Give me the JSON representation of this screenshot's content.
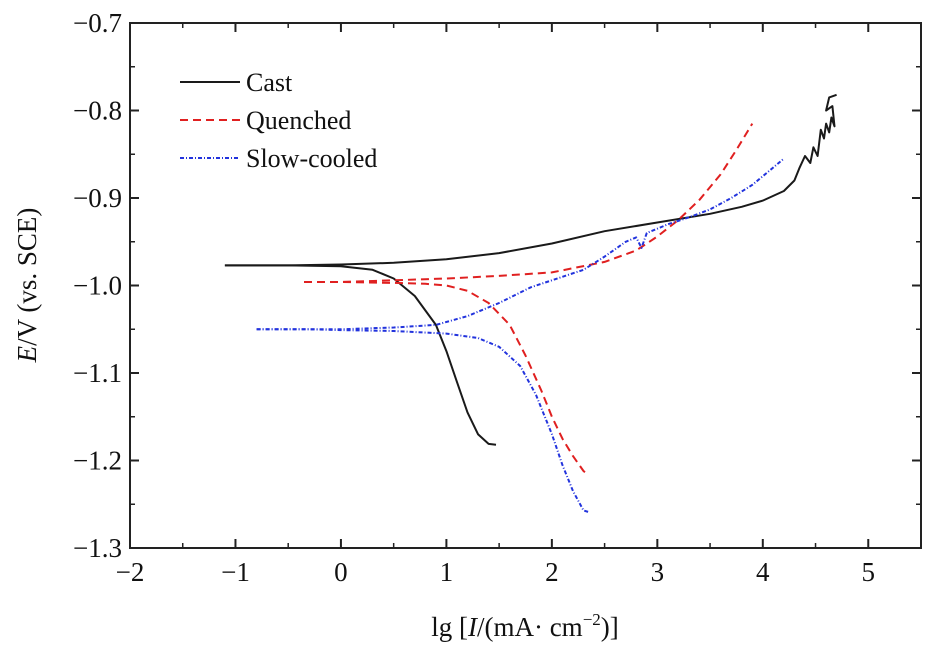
{
  "chart_data": {
    "type": "line",
    "title": "",
    "xlabel": {
      "prefix": "lg [",
      "var": "I",
      "mid": "/(mA· cm",
      "sup": "−2",
      "suffix": ")]"
    },
    "ylabel": {
      "var": "E",
      "rest": "/V (vs. SCE)"
    },
    "xlim": [
      -2,
      5.5
    ],
    "ylim": [
      -1.3,
      -0.7
    ],
    "xticks": [
      -2,
      -1,
      0,
      1,
      2,
      3,
      4,
      5
    ],
    "xtick_labels": [
      "−2",
      "−1",
      "0",
      "1",
      "2",
      "3",
      "4",
      "5"
    ],
    "yticks": [
      -1.3,
      -1.2,
      -1.1,
      -1.0,
      -0.9,
      -0.8,
      -0.7
    ],
    "ytick_labels": [
      "−1.3",
      "−1.2",
      "−1.1",
      "−1.0",
      "−0.9",
      "−0.8",
      "−0.7"
    ],
    "grid": false,
    "legend_position": "top-left",
    "series": [
      {
        "name": "Cast",
        "color": "#1a1a1a",
        "dash": "solid",
        "anodic": [
          [
            -1.1,
            -0.977
          ],
          [
            -0.5,
            -0.977
          ],
          [
            0.0,
            -0.976
          ],
          [
            0.5,
            -0.974
          ],
          [
            1.0,
            -0.97
          ],
          [
            1.5,
            -0.963
          ],
          [
            2.0,
            -0.952
          ],
          [
            2.5,
            -0.938
          ],
          [
            3.0,
            -0.928
          ],
          [
            3.5,
            -0.918
          ],
          [
            3.8,
            -0.91
          ],
          [
            4.0,
            -0.903
          ],
          [
            4.2,
            -0.892
          ],
          [
            4.3,
            -0.88
          ],
          [
            4.35,
            -0.865
          ],
          [
            4.4,
            -0.852
          ],
          [
            4.45,
            -0.86
          ],
          [
            4.48,
            -0.842
          ],
          [
            4.52,
            -0.852
          ],
          [
            4.55,
            -0.822
          ],
          [
            4.58,
            -0.832
          ],
          [
            4.6,
            -0.815
          ],
          [
            4.63,
            -0.825
          ],
          [
            4.65,
            -0.808
          ],
          [
            4.68,
            -0.818
          ],
          [
            4.66,
            -0.795
          ],
          [
            4.6,
            -0.8
          ],
          [
            4.63,
            -0.785
          ],
          [
            4.7,
            -0.782
          ]
        ],
        "cathodic": [
          [
            -1.1,
            -0.977
          ],
          [
            -0.5,
            -0.977
          ],
          [
            0.0,
            -0.978
          ],
          [
            0.3,
            -0.982
          ],
          [
            0.5,
            -0.992
          ],
          [
            0.7,
            -1.012
          ],
          [
            0.9,
            -1.045
          ],
          [
            1.0,
            -1.075
          ],
          [
            1.1,
            -1.11
          ],
          [
            1.2,
            -1.145
          ],
          [
            1.3,
            -1.17
          ],
          [
            1.4,
            -1.181
          ],
          [
            1.47,
            -1.182
          ]
        ]
      },
      {
        "name": "Quenched",
        "color": "#e02020",
        "dash": "8 5",
        "anodic": [
          [
            -0.35,
            -0.996
          ],
          [
            0.0,
            -0.996
          ],
          [
            0.5,
            -0.994
          ],
          [
            1.0,
            -0.992
          ],
          [
            1.5,
            -0.989
          ],
          [
            2.0,
            -0.985
          ],
          [
            2.5,
            -0.973
          ],
          [
            2.8,
            -0.96
          ],
          [
            3.0,
            -0.944
          ],
          [
            3.2,
            -0.925
          ],
          [
            3.4,
            -0.902
          ],
          [
            3.6,
            -0.873
          ],
          [
            3.75,
            -0.845
          ],
          [
            3.85,
            -0.825
          ],
          [
            3.9,
            -0.815
          ]
        ],
        "cathodic": [
          [
            -0.35,
            -0.996
          ],
          [
            0.0,
            -0.996
          ],
          [
            0.5,
            -0.997
          ],
          [
            0.8,
            -0.998
          ],
          [
            1.0,
            -1.0
          ],
          [
            1.2,
            -1.006
          ],
          [
            1.4,
            -1.02
          ],
          [
            1.6,
            -1.045
          ],
          [
            1.75,
            -1.08
          ],
          [
            1.9,
            -1.12
          ],
          [
            2.0,
            -1.15
          ],
          [
            2.1,
            -1.175
          ],
          [
            2.2,
            -1.195
          ],
          [
            2.3,
            -1.212
          ],
          [
            2.35,
            -1.217
          ]
        ]
      },
      {
        "name": "Slow-cooled",
        "color": "#2233dd",
        "dash": "4 2 1 2",
        "anodic": [
          [
            -0.8,
            -1.05
          ],
          [
            -0.3,
            -1.05
          ],
          [
            0.0,
            -1.05
          ],
          [
            0.5,
            -1.048
          ],
          [
            0.9,
            -1.045
          ],
          [
            1.2,
            -1.035
          ],
          [
            1.5,
            -1.02
          ],
          [
            1.8,
            -1.002
          ],
          [
            2.1,
            -0.99
          ],
          [
            2.3,
            -0.982
          ],
          [
            2.5,
            -0.967
          ],
          [
            2.7,
            -0.95
          ],
          [
            2.8,
            -0.945
          ],
          [
            2.85,
            -0.957
          ],
          [
            2.9,
            -0.94
          ],
          [
            3.1,
            -0.93
          ],
          [
            3.3,
            -0.922
          ],
          [
            3.5,
            -0.913
          ],
          [
            3.7,
            -0.9
          ],
          [
            3.9,
            -0.885
          ],
          [
            4.05,
            -0.87
          ],
          [
            4.2,
            -0.855
          ]
        ],
        "cathodic": [
          [
            -0.8,
            -1.05
          ],
          [
            -0.3,
            -1.05
          ],
          [
            0.0,
            -1.051
          ],
          [
            0.5,
            -1.052
          ],
          [
            1.0,
            -1.055
          ],
          [
            1.3,
            -1.06
          ],
          [
            1.5,
            -1.07
          ],
          [
            1.7,
            -1.092
          ],
          [
            1.85,
            -1.125
          ],
          [
            2.0,
            -1.17
          ],
          [
            2.1,
            -1.205
          ],
          [
            2.2,
            -1.235
          ],
          [
            2.3,
            -1.257
          ],
          [
            2.35,
            -1.259
          ]
        ]
      }
    ]
  }
}
